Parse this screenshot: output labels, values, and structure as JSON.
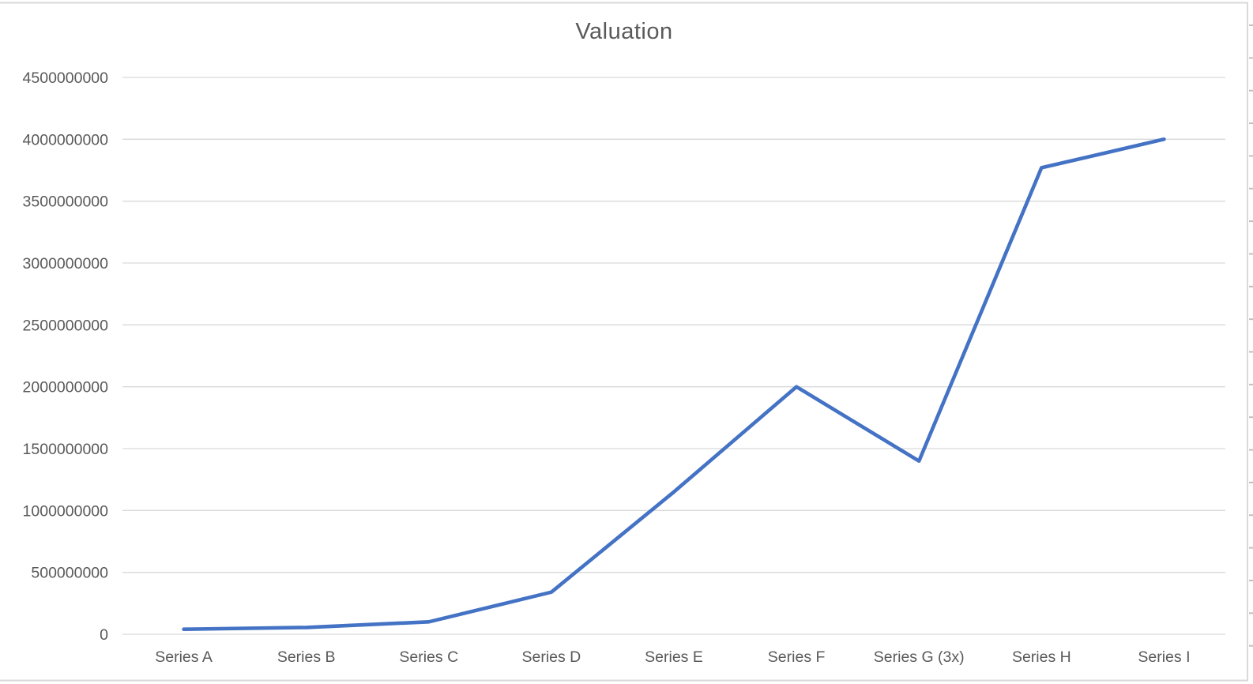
{
  "colors": {
    "line": "#4472C4",
    "gridline": "#D9D9D9",
    "border": "#D9D9D9",
    "row_tick": "#BFBFBF",
    "text": "#595959",
    "background": "#FFFFFF"
  },
  "chart_data": {
    "type": "line",
    "title": "Valuation",
    "categories": [
      "Series A",
      "Series B",
      "Series C",
      "Series D",
      "Series E",
      "Series F",
      "Series G (3x)",
      "Series H",
      "Series I"
    ],
    "values": [
      40000000,
      55000000,
      100000000,
      340000000,
      1150000000,
      2000000000,
      1400000000,
      3770000000,
      4000000000
    ],
    "series_name": "Valuation",
    "xlabel": "",
    "ylabel": "",
    "ylim": [
      0,
      4500000000
    ],
    "ytick_step": 500000000,
    "ytick_labels": [
      "0",
      "500000000",
      "1000000000",
      "1500000000",
      "2000000000",
      "2500000000",
      "3000000000",
      "3500000000",
      "4000000000",
      "4500000000"
    ],
    "grid": true,
    "legend_position": "none"
  }
}
